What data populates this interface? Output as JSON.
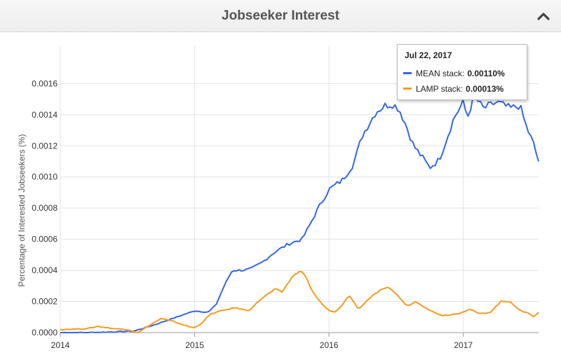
{
  "header": {
    "title": "Jobseeker Interest",
    "collapse_icon": "chevron-up-icon"
  },
  "tooltip": {
    "date": "Jul 22, 2017",
    "rows": [
      {
        "name": "MEAN stack",
        "value": "0.00110%",
        "color": "#3366e6"
      },
      {
        "name": "LAMP stack",
        "value": "0.00013%",
        "color": "#f59a1e"
      }
    ]
  },
  "chart_data": {
    "type": "line",
    "ylabel": "Percentage of Interested Jobseekers (%)",
    "xlabel": "",
    "xlim": [
      2014.0,
      2017.56
    ],
    "ylim": [
      0,
      0.00175
    ],
    "x_ticks": [
      2014,
      2015,
      2016,
      2017
    ],
    "x_tick_labels": [
      "2014",
      "2015",
      "2016",
      "2017"
    ],
    "y_ticks": [
      0.0,
      0.0002,
      0.0004,
      0.0006,
      0.0008,
      0.001,
      0.0012,
      0.0014,
      0.0016
    ],
    "y_tick_labels": [
      "0.0000",
      "0.0002",
      "0.0004",
      "0.0006",
      "0.0008",
      "0.0010",
      "0.0012",
      "0.0014",
      "0.0016"
    ],
    "grid": true,
    "series": [
      {
        "name": "MEAN stack",
        "color": "#3366e6",
        "points": [
          [
            2014.0,
            0.0
          ],
          [
            2014.2,
            0.0
          ],
          [
            2014.4,
            5e-06
          ],
          [
            2014.55,
            1e-05
          ],
          [
            2014.7,
            5e-05
          ],
          [
            2014.8,
            8e-05
          ],
          [
            2014.9,
            0.00011
          ],
          [
            2015.0,
            0.00014
          ],
          [
            2015.1,
            0.00013
          ],
          [
            2015.16,
            0.00018
          ],
          [
            2015.22,
            0.0003
          ],
          [
            2015.28,
            0.0004
          ],
          [
            2015.35,
            0.0004
          ],
          [
            2015.42,
            0.00041
          ],
          [
            2015.5,
            0.00045
          ],
          [
            2015.6,
            0.00052
          ],
          [
            2015.7,
            0.00057
          ],
          [
            2015.8,
            0.0006
          ],
          [
            2015.85,
            0.00068
          ],
          [
            2015.92,
            0.0008
          ],
          [
            2016.0,
            0.00092
          ],
          [
            2016.1,
            0.00098
          ],
          [
            2016.18,
            0.00108
          ],
          [
            2016.25,
            0.00127
          ],
          [
            2016.35,
            0.00142
          ],
          [
            2016.42,
            0.00146
          ],
          [
            2016.47,
            0.00147
          ],
          [
            2016.52,
            0.00144
          ],
          [
            2016.57,
            0.00134
          ],
          [
            2016.63,
            0.0012
          ],
          [
            2016.7,
            0.00112
          ],
          [
            2016.75,
            0.00106
          ],
          [
            2016.82,
            0.00111
          ],
          [
            2016.87,
            0.00123
          ],
          [
            2016.93,
            0.00138
          ],
          [
            2017.0,
            0.00148
          ],
          [
            2017.03,
            0.00138
          ],
          [
            2017.08,
            0.00152
          ],
          [
            2017.15,
            0.00144
          ],
          [
            2017.25,
            0.00148
          ],
          [
            2017.35,
            0.00144
          ],
          [
            2017.42,
            0.00146
          ],
          [
            2017.47,
            0.00132
          ],
          [
            2017.52,
            0.00122
          ],
          [
            2017.56,
            0.0011
          ]
        ]
      },
      {
        "name": "LAMP stack",
        "color": "#f59a1e",
        "points": [
          [
            2014.0,
            2e-05
          ],
          [
            2014.2,
            2.5e-05
          ],
          [
            2014.28,
            4e-05
          ],
          [
            2014.4,
            2.5e-05
          ],
          [
            2014.5,
            2e-05
          ],
          [
            2014.58,
            0.0
          ],
          [
            2014.65,
            4e-05
          ],
          [
            2014.75,
            9e-05
          ],
          [
            2014.85,
            7e-05
          ],
          [
            2014.95,
            4e-05
          ],
          [
            2015.0,
            3e-05
          ],
          [
            2015.05,
            6e-05
          ],
          [
            2015.12,
            0.00012
          ],
          [
            2015.2,
            0.00014
          ],
          [
            2015.3,
            0.00016
          ],
          [
            2015.4,
            0.00014
          ],
          [
            2015.5,
            0.00022
          ],
          [
            2015.6,
            0.00028
          ],
          [
            2015.65,
            0.00026
          ],
          [
            2015.72,
            0.00035
          ],
          [
            2015.78,
            0.0004
          ],
          [
            2015.82,
            0.00037
          ],
          [
            2015.88,
            0.00026
          ],
          [
            2015.95,
            0.00018
          ],
          [
            2016.0,
            0.00014
          ],
          [
            2016.05,
            0.00013
          ],
          [
            2016.1,
            0.00018
          ],
          [
            2016.15,
            0.00024
          ],
          [
            2016.22,
            0.00015
          ],
          [
            2016.3,
            0.00022
          ],
          [
            2016.38,
            0.00027
          ],
          [
            2016.45,
            0.00029
          ],
          [
            2016.52,
            0.00023
          ],
          [
            2016.58,
            0.00017
          ],
          [
            2016.65,
            0.0002
          ],
          [
            2016.7,
            0.00017
          ],
          [
            2016.78,
            0.00013
          ],
          [
            2016.85,
            0.00011
          ],
          [
            2016.95,
            0.00012
          ],
          [
            2017.05,
            0.00015
          ],
          [
            2017.12,
            0.00012
          ],
          [
            2017.2,
            0.00013
          ],
          [
            2017.28,
            0.0002
          ],
          [
            2017.35,
            0.0002
          ],
          [
            2017.42,
            0.00014
          ],
          [
            2017.48,
            0.00013
          ],
          [
            2017.52,
            0.0001
          ],
          [
            2017.56,
            0.00013
          ]
        ]
      }
    ]
  }
}
